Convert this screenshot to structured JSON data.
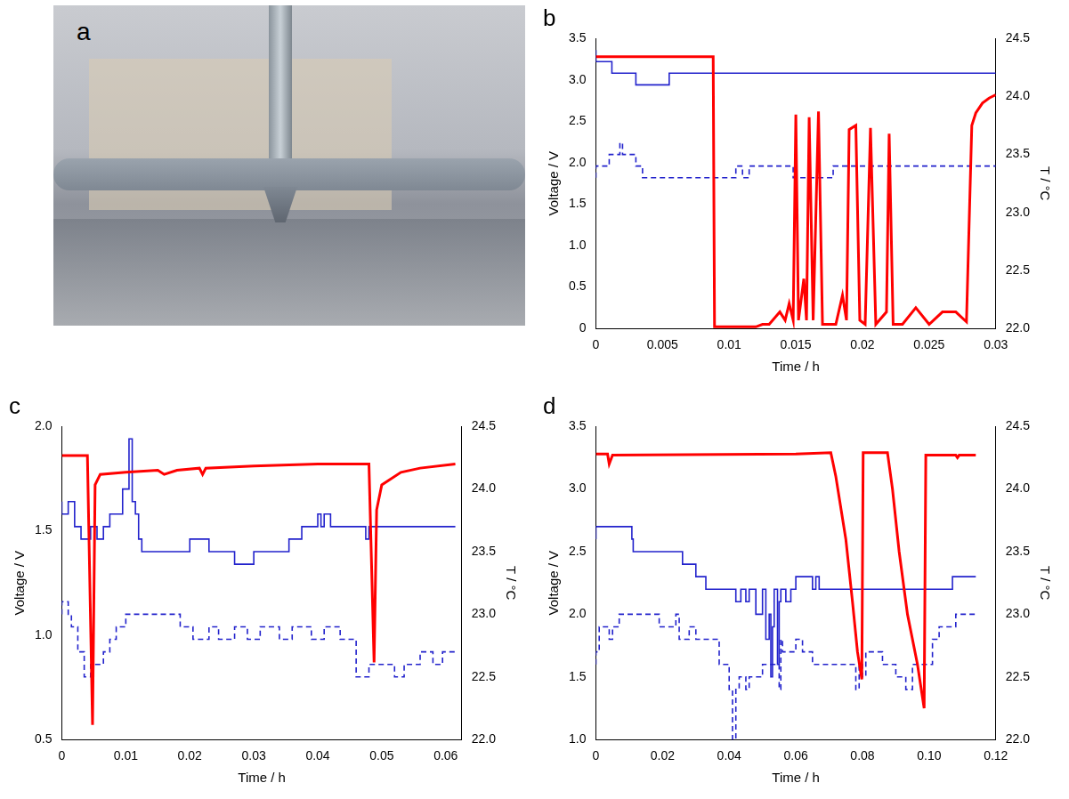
{
  "image": {
    "label": "a"
  },
  "chart_data": [
    {
      "type": "line",
      "title": "b",
      "x_label": "Time / h",
      "y_label": "Voltage / V",
      "y2_label": "T / °C",
      "grid": false,
      "xlim": [
        0,
        0.03
      ],
      "xticks": [
        0,
        0.005,
        0.01,
        0.015,
        0.02,
        0.025,
        0.03
      ],
      "ylim": [
        0,
        3.5
      ],
      "yticks": [
        0,
        0.5,
        {
          "value": 1,
          "label": "1.0"
        },
        1.5,
        {
          "value": 2,
          "label": "2.0"
        },
        2.5,
        {
          "value": 3,
          "label": "3.0"
        },
        3.5
      ],
      "y2lim": [
        22,
        24.5
      ],
      "y2ticks": [
        {
          "value": 22,
          "label": "22.0"
        },
        22.5,
        {
          "value": 23,
          "label": "23.0"
        },
        23.5,
        {
          "value": 24,
          "label": "24.0"
        },
        24.5
      ],
      "series": [
        {
          "color": "#ff0000",
          "line_style": "solid",
          "x": [
            0,
            0.0088,
            0.0089,
            0.012,
            0.0125,
            0.013,
            0.0138,
            0.0142,
            0.0145,
            0.0148,
            0.015,
            0.0152,
            0.0156,
            0.0158,
            0.016,
            0.0163,
            0.0167,
            0.017,
            0.018,
            0.0185,
            0.0188,
            0.019,
            0.0195,
            0.0198,
            0.0202,
            0.0206,
            0.021,
            0.0218,
            0.022,
            0.0223,
            0.023,
            0.024,
            0.025,
            0.026,
            0.027,
            0.0278,
            0.0282,
            0.0285,
            0.029,
            0.0295,
            0.03
          ],
          "values": [
            3.28,
            3.28,
            0.02,
            0.02,
            0.05,
            0.05,
            0.2,
            0.1,
            0.3,
            0.1,
            2.58,
            0.1,
            0.6,
            0.1,
            2.55,
            0.1,
            2.62,
            0.05,
            0.05,
            0.4,
            0.1,
            2.4,
            2.45,
            0.1,
            0.05,
            2.42,
            0.05,
            0.2,
            2.35,
            0.05,
            0.05,
            0.25,
            0.05,
            0.2,
            0.2,
            0.08,
            2.45,
            2.6,
            2.72,
            2.78,
            2.82
          ]
        },
        {
          "color": "#2222cc",
          "line_style": "solid",
          "axis": "y2",
          "x": [
            0,
            0.0012,
            0.003,
            0.0055,
            0.0298,
            0.03
          ],
          "values": [
            24.4,
            24.3,
            24.2,
            24.1,
            24.2,
            24.2
          ]
        },
        {
          "color": "#2222cc",
          "line_style": "dashed",
          "axis": "y2",
          "x": [
            0,
            0.001,
            0.0018,
            0.002,
            0.003,
            0.0035,
            0.0105,
            0.011,
            0.0115,
            0.0148,
            0.0178,
            0.0195,
            0.03
          ],
          "values": [
            23.3,
            23.4,
            23.5,
            23.6,
            23.5,
            23.4,
            23.3,
            23.4,
            23.3,
            23.4,
            23.3,
            23.4,
            23.4
          ]
        }
      ]
    },
    {
      "type": "line",
      "title": "c",
      "x_label": "Time / h",
      "y_label": "Voltage / V",
      "y2_label": "T / °C",
      "grid": false,
      "xlim": [
        0,
        0.0625
      ],
      "xticks": [
        0,
        0.01,
        0.02,
        0.03,
        0.04,
        0.05,
        0.06
      ],
      "ylim": [
        0.5,
        2
      ],
      "yticks": [
        0.5,
        {
          "value": 1,
          "label": "1.0"
        },
        1.5,
        {
          "value": 2,
          "label": "2.0"
        }
      ],
      "y2lim": [
        22,
        24.5
      ],
      "y2ticks": [
        {
          "value": 22,
          "label": "22.0"
        },
        22.5,
        {
          "value": 23,
          "label": "23.0"
        },
        23.5,
        {
          "value": 24,
          "label": "24.0"
        },
        24.5
      ],
      "series": [
        {
          "color": "#ff0000",
          "line_style": "solid",
          "x": [
            0,
            0.004,
            0.0048,
            0.0052,
            0.006,
            0.01,
            0.015,
            0.016,
            0.018,
            0.0215,
            0.022,
            0.0225,
            0.03,
            0.04,
            0.048,
            0.0488,
            0.0492,
            0.05,
            0.053,
            0.056,
            0.0615
          ],
          "values": [
            1.86,
            1.86,
            0.57,
            1.72,
            1.77,
            1.78,
            1.79,
            1.77,
            1.79,
            1.8,
            1.77,
            1.8,
            1.81,
            1.82,
            1.82,
            0.87,
            1.6,
            1.72,
            1.78,
            1.8,
            1.82
          ]
        },
        {
          "color": "#2222cc",
          "line_style": "solid",
          "axis": "y2",
          "x": [
            0,
            0.001,
            0.002,
            0.003,
            0.0045,
            0.0055,
            0.0065,
            0.0075,
            0.0095,
            0.0105,
            0.011,
            0.0115,
            0.012,
            0.0125,
            0.02,
            0.023,
            0.027,
            0.03,
            0.0355,
            0.0375,
            0.04,
            0.0405,
            0.041,
            0.042,
            0.0475,
            0.048,
            0.0488,
            0.0615
          ],
          "values": [
            23.9,
            23.8,
            23.9,
            23.7,
            23.6,
            23.7,
            23.6,
            23.7,
            23.8,
            24.0,
            24.4,
            23.9,
            23.8,
            23.6,
            23.5,
            23.6,
            23.5,
            23.4,
            23.5,
            23.6,
            23.7,
            23.8,
            23.7,
            23.8,
            23.7,
            23.6,
            23.7,
            23.7
          ]
        },
        {
          "color": "#2222cc",
          "line_style": "dashed",
          "axis": "y2",
          "x": [
            0,
            0.001,
            0.0015,
            0.0025,
            0.0035,
            0.0045,
            0.0065,
            0.0075,
            0.0085,
            0.01,
            0.0185,
            0.0205,
            0.023,
            0.0245,
            0.027,
            0.029,
            0.031,
            0.034,
            0.036,
            0.039,
            0.041,
            0.0435,
            0.046,
            0.048,
            0.052,
            0.0535,
            0.056,
            0.058,
            0.0595,
            0.0605,
            0.0615
          ],
          "values": [
            23.0,
            23.1,
            23.0,
            22.9,
            22.7,
            22.5,
            22.6,
            22.7,
            22.8,
            22.9,
            23.0,
            22.9,
            22.8,
            22.9,
            22.8,
            22.9,
            22.8,
            22.9,
            22.8,
            22.9,
            22.8,
            22.9,
            22.8,
            22.5,
            22.6,
            22.5,
            22.6,
            22.7,
            22.6,
            22.7,
            22.7
          ]
        }
      ]
    },
    {
      "type": "line",
      "title": "d",
      "x_label": "Time / h",
      "y_label": "Voltage / V",
      "y2_label": "T / °C",
      "grid": false,
      "xlim": [
        0,
        0.12
      ],
      "xticks": [
        0,
        0.02,
        0.04,
        0.06,
        0.08,
        {
          "value": 0.1,
          "label": "0.10"
        },
        0.12
      ],
      "ylim": [
        1,
        3.5
      ],
      "yticks": [
        {
          "value": 1,
          "label": "1.0"
        },
        1.5,
        {
          "value": 2,
          "label": "2.0"
        },
        2.5,
        {
          "value": 3,
          "label": "3.0"
        },
        3.5
      ],
      "y2lim": [
        22,
        24.5
      ],
      "y2ticks": [
        {
          "value": 22,
          "label": "22.0"
        },
        22.5,
        {
          "value": 23,
          "label": "23.0"
        },
        23.5,
        {
          "value": 24,
          "label": "24.0"
        },
        24.5
      ],
      "series": [
        {
          "color": "#ff0000",
          "line_style": "solid",
          "x": [
            0,
            0.0035,
            0.004,
            0.005,
            0.06,
            0.0705,
            0.072,
            0.075,
            0.077,
            0.0785,
            0.0798,
            0.0802,
            0.0875,
            0.089,
            0.091,
            0.0935,
            0.0965,
            0.0985,
            0.099,
            0.108,
            0.1085,
            0.109,
            0.114
          ],
          "values": [
            3.28,
            3.28,
            3.2,
            3.27,
            3.28,
            3.29,
            3.1,
            2.6,
            2.1,
            1.7,
            1.48,
            3.29,
            3.29,
            3.0,
            2.5,
            2.0,
            1.6,
            1.25,
            3.27,
            3.27,
            3.25,
            3.27,
            3.27
          ]
        },
        {
          "color": "#2222cc",
          "line_style": "solid",
          "axis": "y2",
          "x": [
            0,
            0.0108,
            0.0112,
            0.026,
            0.03,
            0.033,
            0.042,
            0.0435,
            0.045,
            0.046,
            0.048,
            0.05,
            0.051,
            0.052,
            0.0525,
            0.053,
            0.0535,
            0.0545,
            0.055,
            0.0555,
            0.057,
            0.0585,
            0.06,
            0.065,
            0.066,
            0.067,
            0.107,
            0.108,
            0.114
          ],
          "values": [
            23.6,
            23.7,
            23.6,
            23.5,
            23.4,
            23.3,
            23.2,
            23.1,
            23.2,
            23.1,
            23.2,
            23.0,
            23.2,
            22.8,
            23.0,
            22.5,
            22.9,
            23.2,
            22.6,
            23.1,
            23.2,
            23.1,
            23.2,
            23.3,
            23.2,
            23.3,
            23.2,
            23.3,
            23.3
          ]
        },
        {
          "color": "#2222cc",
          "line_style": "dashed",
          "axis": "y2",
          "x": [
            0,
            0.001,
            0.004,
            0.005,
            0.007,
            0.019,
            0.024,
            0.025,
            0.028,
            0.03,
            0.037,
            0.04,
            0.041,
            0.042,
            0.043,
            0.045,
            0.046,
            0.05,
            0.055,
            0.0555,
            0.056,
            0.06,
            0.062,
            0.065,
            0.078,
            0.079,
            0.08,
            0.081,
            0.086,
            0.09,
            0.093,
            0.095,
            0.101,
            0.103,
            0.108,
            0.112,
            0.114
          ],
          "values": [
            22.6,
            22.7,
            22.9,
            22.8,
            22.9,
            23.0,
            22.9,
            23.0,
            22.8,
            22.9,
            22.8,
            22.6,
            22.4,
            22.0,
            22.4,
            22.5,
            22.4,
            22.5,
            22.6,
            22.4,
            22.8,
            22.7,
            22.8,
            22.7,
            22.6,
            22.4,
            22.6,
            22.5,
            22.7,
            22.6,
            22.5,
            22.4,
            22.6,
            22.8,
            22.9,
            23.0,
            23.0
          ]
        }
      ]
    }
  ]
}
